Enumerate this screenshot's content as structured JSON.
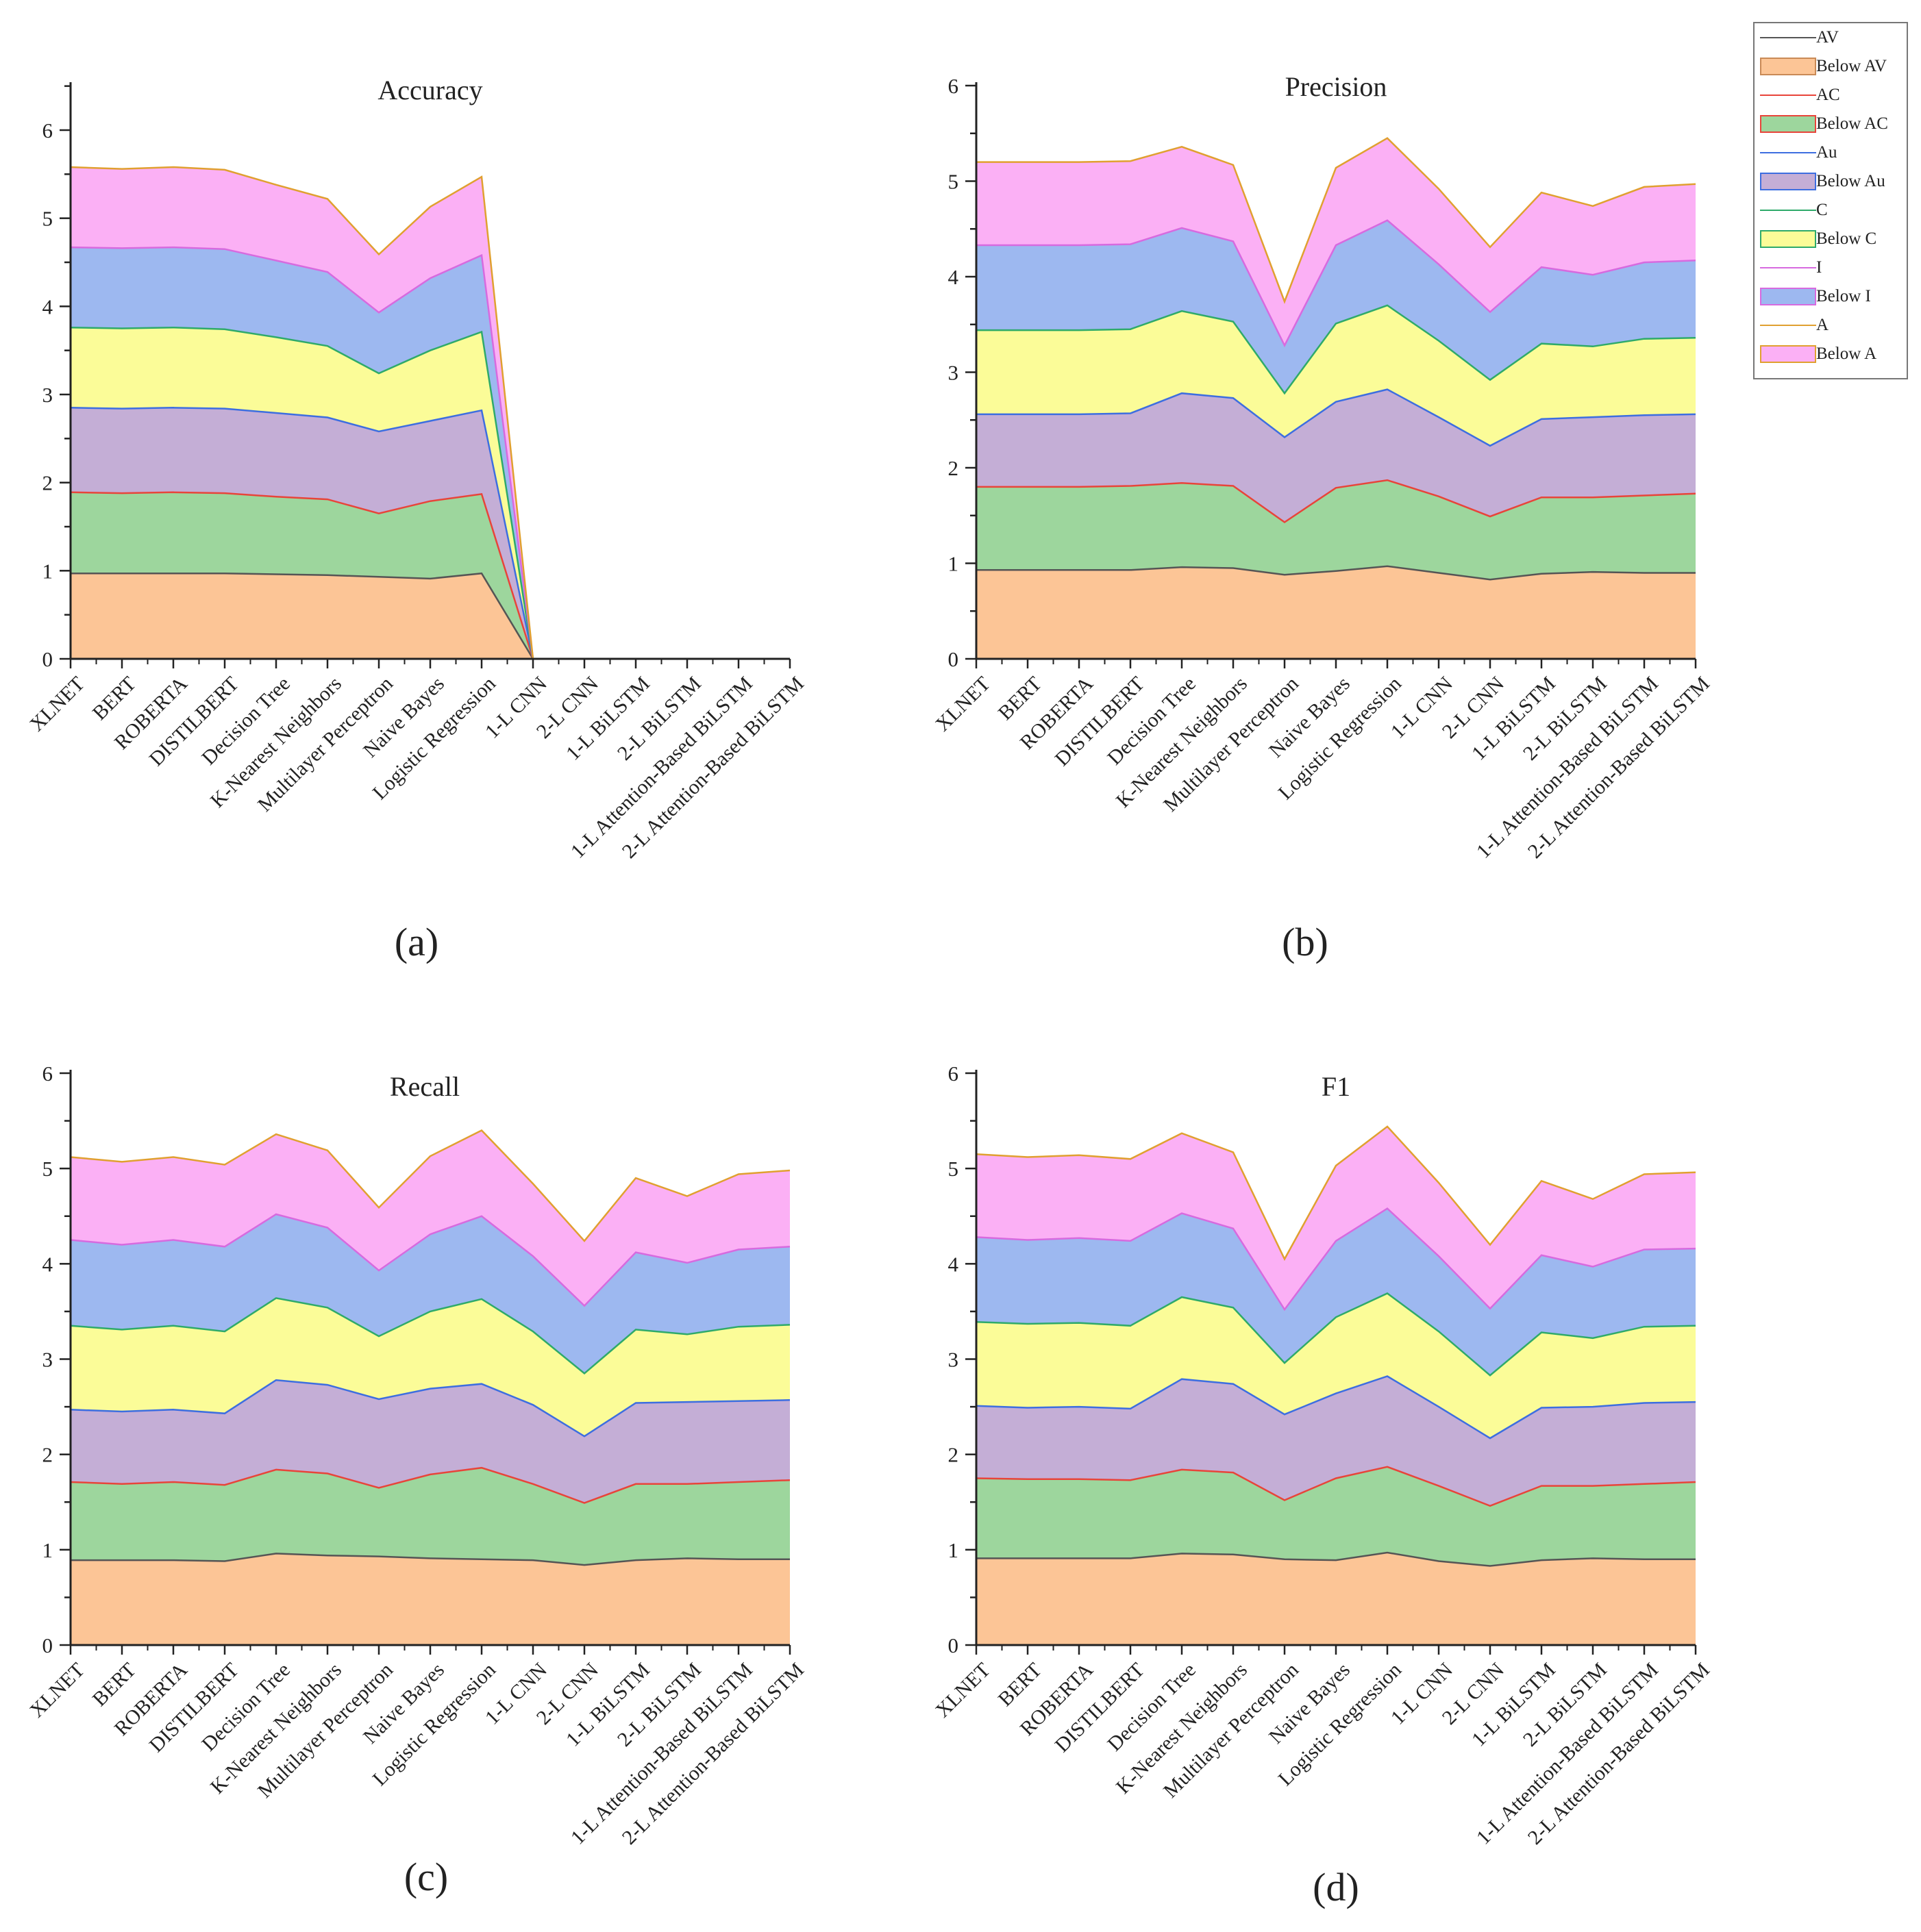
{
  "legend": {
    "items": [
      {
        "label": "AV",
        "kind": "line",
        "color": "#555555"
      },
      {
        "label": "Below AV",
        "kind": "area",
        "color": "#fcc596",
        "border": "#c98a56"
      },
      {
        "label": "AC",
        "kind": "line",
        "color": "#e8443a"
      },
      {
        "label": "Below AC",
        "kind": "area",
        "color": "#9dd69d",
        "border": "#e8443a"
      },
      {
        "label": "Au",
        "kind": "line",
        "color": "#3d6ee0"
      },
      {
        "label": "Below Au",
        "kind": "area",
        "color": "#c4aed6",
        "border": "#3d6ee0"
      },
      {
        "label": "C",
        "kind": "line",
        "color": "#2eaa6a"
      },
      {
        "label": "Below C",
        "kind": "area",
        "color": "#fbfc98",
        "border": "#2eaa6a"
      },
      {
        "label": "I",
        "kind": "line",
        "color": "#d76adf"
      },
      {
        "label": "Below I",
        "kind": "area",
        "color": "#9db8f0",
        "border": "#d76adf"
      },
      {
        "label": "A",
        "kind": "line",
        "color": "#e0a030"
      },
      {
        "label": "Below A",
        "kind": "area",
        "color": "#fbb0f5",
        "border": "#e0a030"
      }
    ]
  },
  "chart_data": [
    {
      "type": "area",
      "stacked": true,
      "title": "Accuracy",
      "caption": "(a)",
      "ylim": [
        0,
        6.5
      ],
      "yticks": [
        "0",
        "1",
        "2",
        "3",
        "4",
        "5",
        "6"
      ],
      "categories": [
        "XLNET",
        "BERT",
        "ROBERTA",
        "DISTILBERT",
        "Decision Tree",
        "K-Nearest Neighbors",
        "Multilayer Perceptron",
        "Naive Bayes",
        "Logistic Regression",
        "1-L CNN",
        "2-L CNN",
        "1-L BiLSTM",
        "2-L BiLSTM",
        "1-L Attention-Based BiLSTM",
        "2-L Attention-Based BiLSTM"
      ],
      "series": [
        {
          "name": "AV",
          "values": [
            0.97,
            0.97,
            0.97,
            0.97,
            0.96,
            0.95,
            0.93,
            0.91,
            0.97,
            0,
            0,
            0,
            0,
            0,
            0
          ]
        },
        {
          "name": "AC",
          "values": [
            0.92,
            0.91,
            0.92,
            0.91,
            0.88,
            0.86,
            0.72,
            0.88,
            0.9,
            0,
            0,
            0,
            0,
            0,
            0
          ]
        },
        {
          "name": "Au",
          "values": [
            0.96,
            0.96,
            0.96,
            0.96,
            0.95,
            0.93,
            0.93,
            0.91,
            0.95,
            0,
            0,
            0,
            0,
            0,
            0
          ]
        },
        {
          "name": "C",
          "values": [
            0.91,
            0.91,
            0.91,
            0.9,
            0.86,
            0.81,
            0.66,
            0.8,
            0.89,
            0,
            0,
            0,
            0,
            0,
            0
          ]
        },
        {
          "name": "I",
          "values": [
            0.91,
            0.91,
            0.91,
            0.91,
            0.87,
            0.84,
            0.69,
            0.82,
            0.87,
            0,
            0,
            0,
            0,
            0,
            0
          ]
        },
        {
          "name": "A",
          "values": [
            0.91,
            0.9,
            0.91,
            0.9,
            0.86,
            0.83,
            0.66,
            0.81,
            0.89,
            0,
            0,
            0,
            0,
            0,
            0
          ]
        }
      ]
    },
    {
      "type": "area",
      "stacked": true,
      "title": "Precision",
      "caption": "(b)",
      "ylim": [
        0,
        6
      ],
      "yticks": [
        "0",
        "1",
        "2",
        "3",
        "4",
        "5",
        "6"
      ],
      "categories": [
        "XLNET",
        "BERT",
        "ROBERTA",
        "DISTILBERT",
        "Decision Tree",
        "K-Nearest Neighbors",
        "Multilayer Perceptron",
        "Naive Bayes",
        "Logistic Regression",
        "1-L CNN",
        "2-L CNN",
        "1-L BiLSTM",
        "2-L BiLSTM",
        "1-L Attention-Based BiLSTM",
        "2-L Attention-Based BiLSTM"
      ],
      "series": [
        {
          "name": "AV",
          "values": [
            0.93,
            0.93,
            0.93,
            0.93,
            0.96,
            0.95,
            0.88,
            0.92,
            0.97,
            0.9,
            0.83,
            0.89,
            0.91,
            0.9,
            0.9
          ]
        },
        {
          "name": "AC",
          "values": [
            0.87,
            0.87,
            0.87,
            0.88,
            0.88,
            0.86,
            0.55,
            0.87,
            0.9,
            0.8,
            0.66,
            0.8,
            0.78,
            0.81,
            0.83
          ]
        },
        {
          "name": "Au",
          "values": [
            0.76,
            0.76,
            0.76,
            0.76,
            0.94,
            0.92,
            0.89,
            0.9,
            0.95,
            0.83,
            0.74,
            0.82,
            0.84,
            0.84,
            0.83
          ]
        },
        {
          "name": "C",
          "values": [
            0.88,
            0.88,
            0.88,
            0.88,
            0.86,
            0.8,
            0.46,
            0.82,
            0.88,
            0.8,
            0.69,
            0.79,
            0.74,
            0.8,
            0.8
          ]
        },
        {
          "name": "I",
          "values": [
            0.89,
            0.89,
            0.89,
            0.89,
            0.87,
            0.84,
            0.5,
            0.82,
            0.89,
            0.8,
            0.71,
            0.8,
            0.75,
            0.8,
            0.81
          ]
        },
        {
          "name": "A",
          "values": [
            0.87,
            0.87,
            0.87,
            0.87,
            0.85,
            0.8,
            0.46,
            0.81,
            0.86,
            0.79,
            0.68,
            0.78,
            0.72,
            0.79,
            0.8
          ]
        }
      ]
    },
    {
      "type": "area",
      "stacked": true,
      "title": "Recall",
      "caption": "(c)",
      "ylim": [
        0,
        6
      ],
      "yticks": [
        "0",
        "1",
        "2",
        "3",
        "4",
        "5",
        "6"
      ],
      "categories": [
        "XLNET",
        "BERT",
        "ROBERTA",
        "DISTILBERT",
        "Decision Tree",
        "K-Nearest Neighbors",
        "Multilayer Perceptron",
        "Naive Bayes",
        "Logistic Regression",
        "1-L CNN",
        "2-L CNN",
        "1-L BiLSTM",
        "2-L BiLSTM",
        "1-L Attention-Based BiLSTM",
        "2-L Attention-Based BiLSTM"
      ],
      "series": [
        {
          "name": "AV",
          "values": [
            0.89,
            0.89,
            0.89,
            0.88,
            0.96,
            0.94,
            0.93,
            0.91,
            0.9,
            0.89,
            0.84,
            0.89,
            0.91,
            0.9,
            0.9
          ]
        },
        {
          "name": "AC",
          "values": [
            0.82,
            0.8,
            0.82,
            0.8,
            0.88,
            0.86,
            0.72,
            0.88,
            0.96,
            0.8,
            0.65,
            0.8,
            0.78,
            0.81,
            0.83
          ]
        },
        {
          "name": "Au",
          "values": [
            0.76,
            0.76,
            0.76,
            0.75,
            0.94,
            0.93,
            0.93,
            0.9,
            0.88,
            0.83,
            0.7,
            0.85,
            0.86,
            0.85,
            0.84
          ]
        },
        {
          "name": "C",
          "values": [
            0.88,
            0.86,
            0.88,
            0.86,
            0.86,
            0.81,
            0.66,
            0.81,
            0.89,
            0.77,
            0.66,
            0.77,
            0.71,
            0.78,
            0.79
          ]
        },
        {
          "name": "I",
          "values": [
            0.9,
            0.89,
            0.9,
            0.89,
            0.88,
            0.84,
            0.69,
            0.81,
            0.87,
            0.79,
            0.71,
            0.81,
            0.75,
            0.81,
            0.82
          ]
        },
        {
          "name": "A",
          "values": [
            0.87,
            0.87,
            0.87,
            0.86,
            0.84,
            0.81,
            0.66,
            0.82,
            0.9,
            0.76,
            0.68,
            0.78,
            0.7,
            0.79,
            0.8
          ]
        }
      ]
    },
    {
      "type": "area",
      "stacked": true,
      "title": "F1",
      "caption": "(d)",
      "ylim": [
        0,
        6
      ],
      "yticks": [
        "0",
        "1",
        "2",
        "3",
        "4",
        "5",
        "6"
      ],
      "categories": [
        "XLNET",
        "BERT",
        "ROBERTA",
        "DISTILBERT",
        "Decision Tree",
        "K-Nearest Neighbors",
        "Multilayer Perceptron",
        "Naive Bayes",
        "Logistic Regression",
        "1-L CNN",
        "2-L CNN",
        "1-L BiLSTM",
        "2-L BiLSTM",
        "1-L Attention-Based BiLSTM",
        "2-L Attention-Based BiLSTM"
      ],
      "series": [
        {
          "name": "AV",
          "values": [
            0.91,
            0.91,
            0.91,
            0.91,
            0.96,
            0.95,
            0.9,
            0.89,
            0.97,
            0.88,
            0.83,
            0.89,
            0.91,
            0.9,
            0.9
          ]
        },
        {
          "name": "AC",
          "values": [
            0.84,
            0.83,
            0.83,
            0.82,
            0.88,
            0.86,
            0.62,
            0.86,
            0.9,
            0.79,
            0.63,
            0.78,
            0.76,
            0.79,
            0.81
          ]
        },
        {
          "name": "Au",
          "values": [
            0.76,
            0.75,
            0.76,
            0.75,
            0.95,
            0.93,
            0.9,
            0.89,
            0.95,
            0.83,
            0.71,
            0.82,
            0.83,
            0.85,
            0.84
          ]
        },
        {
          "name": "C",
          "values": [
            0.88,
            0.88,
            0.88,
            0.87,
            0.86,
            0.8,
            0.54,
            0.8,
            0.87,
            0.79,
            0.66,
            0.79,
            0.72,
            0.8,
            0.8
          ]
        },
        {
          "name": "I",
          "values": [
            0.89,
            0.88,
            0.89,
            0.89,
            0.88,
            0.83,
            0.56,
            0.8,
            0.89,
            0.79,
            0.7,
            0.81,
            0.75,
            0.81,
            0.81
          ]
        },
        {
          "name": "A",
          "values": [
            0.87,
            0.87,
            0.87,
            0.86,
            0.84,
            0.8,
            0.53,
            0.79,
            0.86,
            0.77,
            0.67,
            0.78,
            0.71,
            0.79,
            0.8
          ]
        }
      ]
    }
  ]
}
